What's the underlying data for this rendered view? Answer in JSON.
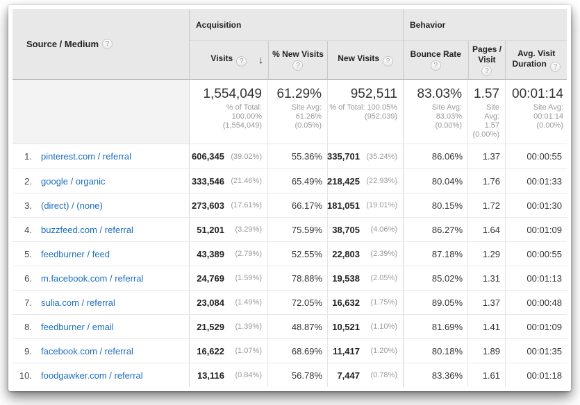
{
  "colors": {
    "link_blue": "#1b6dbf",
    "header_bg": "#e8e8e8"
  },
  "icons": {
    "help": "?",
    "sort_desc": "↓"
  },
  "table": {
    "columns": {
      "source_medium": "Source / Medium",
      "acquisition": "Acquisition",
      "behavior": "Behavior",
      "visits": "Visits",
      "pct_new_visits": "% New Visits",
      "new_visits": "New Visits",
      "bounce_rate": "Bounce Rate",
      "pages_visit": "Pages / Visit",
      "avg_duration": "Avg. Visit Duration"
    },
    "summary": {
      "visits_value": "1,554,049",
      "visits_sub": "% of Total: 100.00% (1,554,049)",
      "pct_new_visits_value": "61.29%",
      "pct_new_visits_sub": "Site Avg: 61.26% (0.05%)",
      "new_visits_value": "952,511",
      "new_visits_sub": "% of Total: 100.05% (952,039)",
      "bounce_rate_value": "83.03%",
      "bounce_rate_sub": "Site Avg: 83.03% (0.00%)",
      "pages_visit_value": "1.57",
      "pages_visit_sub": "Site Avg: 1.57 (0.00%)",
      "avg_duration_value": "00:01:14",
      "avg_duration_sub": "Site Avg: 00:01:14 (0.00%)"
    },
    "rows": [
      {
        "rank": "1.",
        "source": "pinterest.com / referral",
        "visits": "606,345",
        "visits_share": "(39.02%)",
        "pct_new_visits": "55.36%",
        "new_visits": "335,701",
        "new_visits_share": "(35.24%)",
        "bounce_rate": "86.06%",
        "pages_visit": "1.37",
        "avg_duration": "00:00:55"
      },
      {
        "rank": "2.",
        "source": "google / organic",
        "visits": "333,546",
        "visits_share": "(21.46%)",
        "pct_new_visits": "65.49%",
        "new_visits": "218,425",
        "new_visits_share": "(22.93%)",
        "bounce_rate": "80.04%",
        "pages_visit": "1.76",
        "avg_duration": "00:01:33"
      },
      {
        "rank": "3.",
        "source": "(direct) / (none)",
        "visits": "273,603",
        "visits_share": "(17.61%)",
        "pct_new_visits": "66.17%",
        "new_visits": "181,051",
        "new_visits_share": "(19.01%)",
        "bounce_rate": "80.15%",
        "pages_visit": "1.72",
        "avg_duration": "00:01:30"
      },
      {
        "rank": "4.",
        "source": "buzzfeed.com / referral",
        "visits": "51,201",
        "visits_share": "(3.29%)",
        "pct_new_visits": "75.59%",
        "new_visits": "38,705",
        "new_visits_share": "(4.06%)",
        "bounce_rate": "86.27%",
        "pages_visit": "1.64",
        "avg_duration": "00:01:09"
      },
      {
        "rank": "5.",
        "source": "feedburner / feed",
        "visits": "43,389",
        "visits_share": "(2.79%)",
        "pct_new_visits": "52.55%",
        "new_visits": "22,803",
        "new_visits_share": "(2.39%)",
        "bounce_rate": "87.18%",
        "pages_visit": "1.29",
        "avg_duration": "00:00:55"
      },
      {
        "rank": "6.",
        "source": "m.facebook.com / referral",
        "visits": "24,769",
        "visits_share": "(1.59%)",
        "pct_new_visits": "78.88%",
        "new_visits": "19,538",
        "new_visits_share": "(2.05%)",
        "bounce_rate": "85.02%",
        "pages_visit": "1.31",
        "avg_duration": "00:01:13"
      },
      {
        "rank": "7.",
        "source": "sulia.com / referral",
        "visits": "23,084",
        "visits_share": "(1.49%)",
        "pct_new_visits": "72.05%",
        "new_visits": "16,632",
        "new_visits_share": "(1.75%)",
        "bounce_rate": "89.05%",
        "pages_visit": "1.37",
        "avg_duration": "00:00:48"
      },
      {
        "rank": "8.",
        "source": "feedburner / email",
        "visits": "21,529",
        "visits_share": "(1.39%)",
        "pct_new_visits": "48.87%",
        "new_visits": "10,521",
        "new_visits_share": "(1.10%)",
        "bounce_rate": "81.69%",
        "pages_visit": "1.41",
        "avg_duration": "00:01:09"
      },
      {
        "rank": "9.",
        "source": "facebook.com / referral",
        "visits": "16,622",
        "visits_share": "(1.07%)",
        "pct_new_visits": "68.69%",
        "new_visits": "11,417",
        "new_visits_share": "(1.20%)",
        "bounce_rate": "80.18%",
        "pages_visit": "1.89",
        "avg_duration": "00:01:35"
      },
      {
        "rank": "10.",
        "source": "foodgawker.com / referral",
        "visits": "13,116",
        "visits_share": "(0.84%)",
        "pct_new_visits": "56.78%",
        "new_visits": "7,447",
        "new_visits_share": "(0.78%)",
        "bounce_rate": "83.36%",
        "pages_visit": "1.61",
        "avg_duration": "00:01:18"
      }
    ]
  }
}
